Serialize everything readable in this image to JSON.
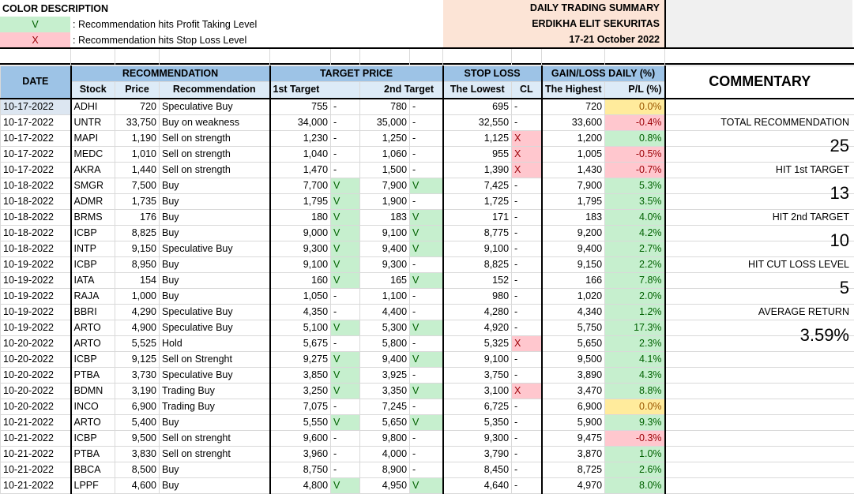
{
  "legend": {
    "title": "COLOR DESCRIPTION",
    "items": [
      {
        "symbol": "V",
        "text": ": Recommendation hits Profit Taking Level",
        "color": "#c6efce"
      },
      {
        "symbol": "X",
        "text": ": Recommendation hits Stop Loss Level",
        "color": "#ffc7ce"
      }
    ]
  },
  "summary_header": {
    "line1": "DAILY TRADING SUMMARY",
    "line2": "ERDIKHA ELIT SEKURITAS",
    "line3": "17-21 October 2022"
  },
  "headers": {
    "date": "DATE",
    "recommendation_group": "RECOMMENDATION",
    "target_group": "TARGET PRICE",
    "stoploss_group": "STOP LOSS",
    "gainloss_group": "GAIN/LOSS DAILY (%)",
    "commentary": "COMMENTARY",
    "stock": "Stock",
    "price": "Price",
    "recommendation": "Recommendation",
    "first_target": "1st Target",
    "second_target": "2nd Target",
    "lowest": "The Lowest",
    "cl": "CL",
    "highest": "The Highest",
    "pl": "P/L (%)"
  },
  "rows": [
    {
      "date": "10-17-2022",
      "stock": "ADHI",
      "price": "720",
      "rec": "Speculative Buy",
      "t1": "755",
      "t1hit": "-",
      "t2": "780",
      "t2hit": "-",
      "low": "695",
      "cl": "-",
      "high": "720",
      "pl": "0.0%"
    },
    {
      "date": "10-17-2022",
      "stock": "UNTR",
      "price": "33,750",
      "rec": "Buy on weakness",
      "t1": "34,000",
      "t1hit": "-",
      "t2": "35,000",
      "t2hit": "-",
      "low": "32,550",
      "cl": "-",
      "high": "33,600",
      "pl": "-0.4%"
    },
    {
      "date": "10-17-2022",
      "stock": "MAPI",
      "price": "1,190",
      "rec": "Sell on strength",
      "t1": "1,230",
      "t1hit": "-",
      "t2": "1,250",
      "t2hit": "-",
      "low": "1,125",
      "cl": "X",
      "high": "1,200",
      "pl": "0.8%"
    },
    {
      "date": "10-17-2022",
      "stock": "MEDC",
      "price": "1,010",
      "rec": "Sell on strength",
      "t1": "1,040",
      "t1hit": "-",
      "t2": "1,060",
      "t2hit": "-",
      "low": "955",
      "cl": "X",
      "high": "1,005",
      "pl": "-0.5%"
    },
    {
      "date": "10-17-2022",
      "stock": "AKRA",
      "price": "1,440",
      "rec": "Sell on strength",
      "t1": "1,470",
      "t1hit": "-",
      "t2": "1,500",
      "t2hit": "-",
      "low": "1,390",
      "cl": "X",
      "high": "1,430",
      "pl": "-0.7%"
    },
    {
      "date": "10-18-2022",
      "stock": "SMGR",
      "price": "7,500",
      "rec": "Buy",
      "t1": "7,700",
      "t1hit": "V",
      "t2": "7,900",
      "t2hit": "V",
      "low": "7,425",
      "cl": "-",
      "high": "7,900",
      "pl": "5.3%"
    },
    {
      "date": "10-18-2022",
      "stock": "ADMR",
      "price": "1,735",
      "rec": "Buy",
      "t1": "1,795",
      "t1hit": "V",
      "t2": "1,900",
      "t2hit": "-",
      "low": "1,725",
      "cl": "-",
      "high": "1,795",
      "pl": "3.5%"
    },
    {
      "date": "10-18-2022",
      "stock": "BRMS",
      "price": "176",
      "rec": "Buy",
      "t1": "180",
      "t1hit": "V",
      "t2": "183",
      "t2hit": "V",
      "low": "171",
      "cl": "-",
      "high": "183",
      "pl": "4.0%"
    },
    {
      "date": "10-18-2022",
      "stock": "ICBP",
      "price": "8,825",
      "rec": "Buy",
      "t1": "9,000",
      "t1hit": "V",
      "t2": "9,100",
      "t2hit": "V",
      "low": "8,775",
      "cl": "-",
      "high": "9,200",
      "pl": "4.2%"
    },
    {
      "date": "10-18-2022",
      "stock": "INTP",
      "price": "9,150",
      "rec": "Speculative Buy",
      "t1": "9,300",
      "t1hit": "V",
      "t2": "9,400",
      "t2hit": "V",
      "low": "9,100",
      "cl": "-",
      "high": "9,400",
      "pl": "2.7%"
    },
    {
      "date": "10-19-2022",
      "stock": "ICBP",
      "price": "8,950",
      "rec": "Buy",
      "t1": "9,100",
      "t1hit": "V",
      "t2": "9,300",
      "t2hit": "-",
      "low": "8,825",
      "cl": "-",
      "high": "9,150",
      "pl": "2.2%"
    },
    {
      "date": "10-19-2022",
      "stock": "IATA",
      "price": "154",
      "rec": "Buy",
      "t1": "160",
      "t1hit": "V",
      "t2": "165",
      "t2hit": "V",
      "low": "152",
      "cl": "-",
      "high": "166",
      "pl": "7.8%"
    },
    {
      "date": "10-19-2022",
      "stock": "RAJA",
      "price": "1,000",
      "rec": "Buy",
      "t1": "1,050",
      "t1hit": "-",
      "t2": "1,100",
      "t2hit": "-",
      "low": "980",
      "cl": "-",
      "high": "1,020",
      "pl": "2.0%"
    },
    {
      "date": "10-19-2022",
      "stock": "BBRI",
      "price": "4,290",
      "rec": "Speculative Buy",
      "t1": "4,350",
      "t1hit": "-",
      "t2": "4,400",
      "t2hit": "-",
      "low": "4,280",
      "cl": "-",
      "high": "4,340",
      "pl": "1.2%"
    },
    {
      "date": "10-19-2022",
      "stock": "ARTO",
      "price": "4,900",
      "rec": "Speculative Buy",
      "t1": "5,100",
      "t1hit": "V",
      "t2": "5,300",
      "t2hit": "V",
      "low": "4,920",
      "cl": "-",
      "high": "5,750",
      "pl": "17.3%"
    },
    {
      "date": "10-20-2022",
      "stock": "ARTO",
      "price": "5,525",
      "rec": "Hold",
      "t1": "5,675",
      "t1hit": "-",
      "t2": "5,800",
      "t2hit": "-",
      "low": "5,325",
      "cl": "X",
      "high": "5,650",
      "pl": "2.3%"
    },
    {
      "date": "10-20-2022",
      "stock": "ICBP",
      "price": "9,125",
      "rec": "Sell on Strenght",
      "t1": "9,275",
      "t1hit": "V",
      "t2": "9,400",
      "t2hit": "V",
      "low": "9,100",
      "cl": "-",
      "high": "9,500",
      "pl": "4.1%"
    },
    {
      "date": "10-20-2022",
      "stock": "PTBA",
      "price": "3,730",
      "rec": "Speculative Buy",
      "t1": "3,850",
      "t1hit": "V",
      "t2": "3,925",
      "t2hit": "-",
      "low": "3,750",
      "cl": "-",
      "high": "3,890",
      "pl": "4.3%"
    },
    {
      "date": "10-20-2022",
      "stock": "BDMN",
      "price": "3,190",
      "rec": "Trading Buy",
      "t1": "3,250",
      "t1hit": "V",
      "t2": "3,350",
      "t2hit": "V",
      "low": "3,100",
      "cl": "X",
      "high": "3,470",
      "pl": "8.8%"
    },
    {
      "date": "10-20-2022",
      "stock": "INCO",
      "price": "6,900",
      "rec": "Trading Buy",
      "t1": "7,075",
      "t1hit": "-",
      "t2": "7,245",
      "t2hit": "-",
      "low": "6,725",
      "cl": "-",
      "high": "6,900",
      "pl": "0.0%"
    },
    {
      "date": "10-21-2022",
      "stock": "ARTO",
      "price": "5,400",
      "rec": "Buy",
      "t1": "5,550",
      "t1hit": "V",
      "t2": "5,650",
      "t2hit": "V",
      "low": "5,350",
      "cl": "-",
      "high": "5,900",
      "pl": "9.3%"
    },
    {
      "date": "10-21-2022",
      "stock": "ICBP",
      "price": "9,500",
      "rec": "Sell on strenght",
      "t1": "9,600",
      "t1hit": "-",
      "t2": "9,800",
      "t2hit": "-",
      "low": "9,300",
      "cl": "-",
      "high": "9,475",
      "pl": "-0.3%"
    },
    {
      "date": "10-21-2022",
      "stock": "PTBA",
      "price": "3,830",
      "rec": "Sell on strenght",
      "t1": "3,960",
      "t1hit": "-",
      "t2": "4,000",
      "t2hit": "-",
      "low": "3,790",
      "cl": "-",
      "high": "3,870",
      "pl": "1.0%"
    },
    {
      "date": "10-21-2022",
      "stock": "BBCA",
      "price": "8,500",
      "rec": "Buy",
      "t1": "8,750",
      "t1hit": "-",
      "t2": "8,900",
      "t2hit": "-",
      "low": "8,450",
      "cl": "-",
      "high": "8,725",
      "pl": "2.6%"
    },
    {
      "date": "10-21-2022",
      "stock": "LPPF",
      "price": "4,600",
      "rec": "Buy",
      "t1": "4,800",
      "t1hit": "V",
      "t2": "4,950",
      "t2hit": "V",
      "low": "4,640",
      "cl": "-",
      "high": "4,970",
      "pl": "8.0%"
    }
  ],
  "commentary": {
    "total_label": "TOTAL RECOMMENDATION",
    "total_value": "25",
    "hit1_label": "HIT 1st TARGET",
    "hit1_value": "13",
    "hit2_label": "HIT 2nd TARGET",
    "hit2_value": "10",
    "cutloss_label": "HIT CUT LOSS LEVEL",
    "cutloss_value": "5",
    "avg_label": "AVERAGE RETURN",
    "avg_value": "3.59%"
  },
  "colors": {
    "header_dark": "#9dc3e6",
    "header_light": "#ddebf7",
    "summary_bg": "#fce4d6",
    "profit": "#c6efce",
    "loss": "#ffc7ce",
    "neutral": "#ffeb9c"
  }
}
